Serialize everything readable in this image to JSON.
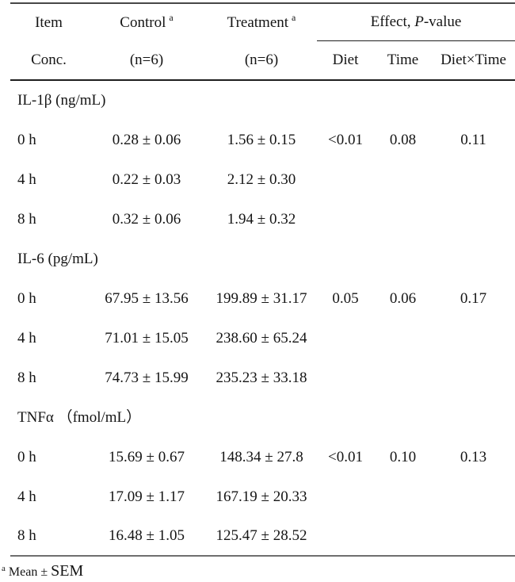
{
  "table": {
    "header": {
      "item": "Item",
      "conc": "Conc.",
      "control": {
        "label": "Control",
        "sup": "a",
        "n": "(n=6)"
      },
      "treatment": {
        "label": "Treatment",
        "sup": "a",
        "n": "(n=6)"
      },
      "effect": {
        "pre": "Effect, ",
        "p": "P",
        "post": "-value"
      },
      "effect_cols": [
        "Diet",
        "Time",
        "Diet×Time"
      ]
    },
    "sections": [
      {
        "label": "IL-1β (ng/mL)",
        "rows": [
          {
            "time": "0 h",
            "control": "0.28 ± 0.06",
            "treatment": "1.56 ± 0.15",
            "p_diet": "<0.01",
            "p_time": "0.08",
            "p_interaction": "0.11"
          },
          {
            "time": "4 h",
            "control": "0.22 ± 0.03",
            "treatment": "2.12 ± 0.30",
            "p_diet": "",
            "p_time": "",
            "p_interaction": ""
          },
          {
            "time": "8 h",
            "control": "0.32 ± 0.06",
            "treatment": "1.94 ± 0.32",
            "p_diet": "",
            "p_time": "",
            "p_interaction": ""
          }
        ]
      },
      {
        "label": "IL-6 (pg/mL)",
        "rows": [
          {
            "time": "0 h",
            "control": "67.95 ± 13.56",
            "treatment": "199.89 ± 31.17",
            "p_diet": "0.05",
            "p_time": "0.06",
            "p_interaction": "0.17"
          },
          {
            "time": "4 h",
            "control": "71.01 ± 15.05",
            "treatment": "238.60 ± 65.24",
            "p_diet": "",
            "p_time": "",
            "p_interaction": ""
          },
          {
            "time": "8 h",
            "control": "74.73 ± 15.99",
            "treatment": "235.23 ± 33.18",
            "p_diet": "",
            "p_time": "",
            "p_interaction": ""
          }
        ]
      },
      {
        "label": "TNFα （fmol/mL）",
        "rows": [
          {
            "time": "0 h",
            "control": "15.69 ± 0.67",
            "treatment": "148.34 ± 27.8",
            "p_diet": "<0.01",
            "p_time": "0.10",
            "p_interaction": "0.13"
          },
          {
            "time": "4 h",
            "control": "17.09 ± 1.17",
            "treatment": "167.19 ± 20.33",
            "p_diet": "",
            "p_time": "",
            "p_interaction": ""
          },
          {
            "time": "8 h",
            "control": "16.48 ± 1.05",
            "treatment": "125.47 ± 28.52",
            "p_diet": "",
            "p_time": "",
            "p_interaction": ""
          }
        ]
      }
    ],
    "footnote": {
      "marker": "a",
      "text_small": "Mean ± ",
      "text_large": "SEM"
    }
  }
}
